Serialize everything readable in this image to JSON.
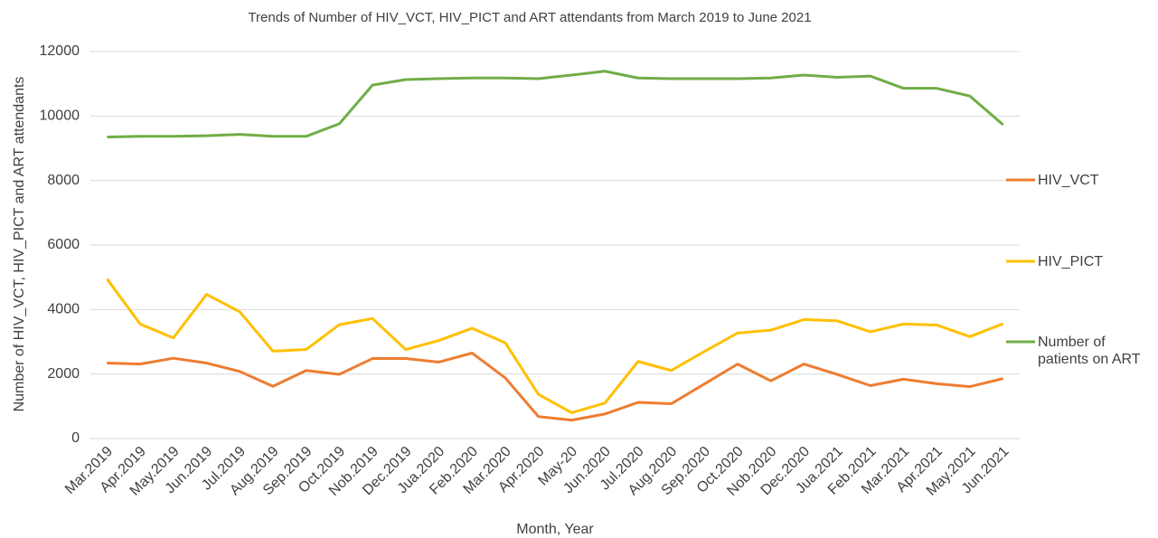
{
  "chart_data": {
    "type": "line",
    "title": "Trends of Number of HIV_VCT, HIV_PICT and ART attendants from March 2019 to June 2021",
    "x_label": "Month, Year",
    "y_label": "Number of HIV_VCT, HIV_PICT and ART attendants",
    "categories": [
      "Mar.2019",
      "Apr.2019",
      "May.2019",
      "Jun.2019",
      "Jul.2019",
      "Aug.2019",
      "Sep.2019",
      "Oct.2019",
      "Nob.2019",
      "Dec.2019",
      "Jua.2020",
      "Feb.2020",
      "Mar.2020",
      "Apr.2020",
      "May-20",
      "Jun.2020",
      "Jul.2020",
      "Aug.2020",
      "Sep.2020",
      "Oct.2020",
      "Nob.2020",
      "Dec.2020",
      "Jua.2021",
      "Feb.2021",
      "Mar.2021",
      "Apr.2021",
      "May.2021",
      "Jun.2021"
    ],
    "series": [
      {
        "name": "HIV_VCT",
        "color": "#ed7d31",
        "values": [
          2340,
          2310,
          2490,
          2340,
          2080,
          1620,
          2110,
          1990,
          2480,
          2480,
          2370,
          2650,
          1880,
          680,
          570,
          760,
          1120,
          1080,
          1690,
          2310,
          1790,
          2310,
          1990,
          1640,
          1840,
          1700,
          1610,
          1860
        ]
      },
      {
        "name": "HIV_PICT",
        "color": "#ffc000",
        "values": [
          4950,
          3550,
          3120,
          4470,
          3930,
          2710,
          2760,
          3530,
          3720,
          2760,
          3040,
          3420,
          2970,
          1370,
          800,
          1100,
          2390,
          2110,
          2700,
          3270,
          3360,
          3690,
          3650,
          3310,
          3550,
          3520,
          3160,
          3560
        ]
      },
      {
        "name": "Number of patients on ART",
        "color": "#70ad47",
        "values": [
          9350,
          9370,
          9370,
          9390,
          9430,
          9370,
          9370,
          9760,
          10960,
          11130,
          11160,
          11180,
          11180,
          11160,
          11270,
          11390,
          11180,
          11160,
          11160,
          11160,
          11180,
          11270,
          11200,
          11240,
          10860,
          10860,
          10620,
          9730
        ]
      }
    ],
    "ylim": [
      0,
      12000
    ],
    "yticks": [
      0,
      2000,
      4000,
      6000,
      8000,
      10000,
      12000
    ],
    "grid": true,
    "legend": "right"
  }
}
